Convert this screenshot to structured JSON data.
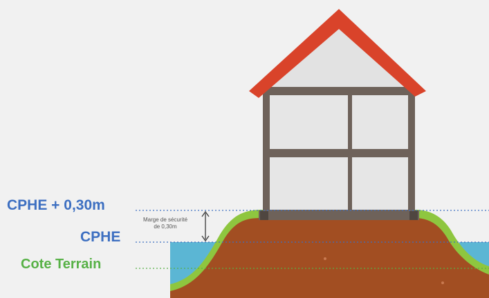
{
  "labels": {
    "cphe_plus": "CPHE + 0,30m",
    "cphe": "CPHE",
    "cote_terrain": "Cote Terrain",
    "margin_note_line1": "Marge de sécurité",
    "margin_note_line2": "de 0,30m"
  },
  "colors": {
    "background": "#f1f1f1",
    "roof": "#d9432a",
    "gable": "#e2e2e2",
    "frame": "#6e625a",
    "window": "#e6e6e6",
    "ground": "#a24e22",
    "embankment": "#8ec63f",
    "water": "#5bb6d4",
    "label_blue": "#3d6fc1",
    "label_green": "#57b146"
  }
}
